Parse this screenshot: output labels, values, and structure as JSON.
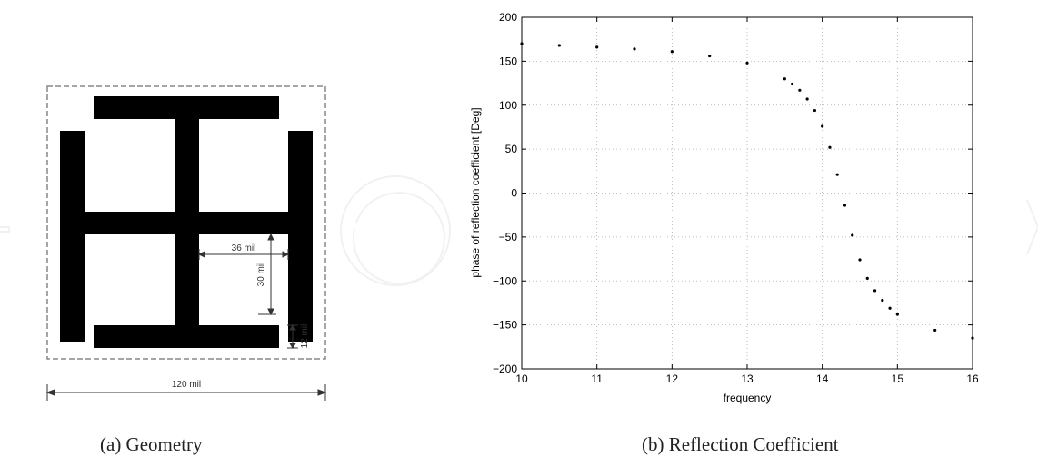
{
  "captions": {
    "left": "(a) Geometry",
    "right": "(b) Reflection Coefficient"
  },
  "geometry": {
    "dim_width": "36 mil",
    "dim_height": "30 mil",
    "dim_strip": "12 mil",
    "dim_total": "120 mil"
  },
  "chart_data": {
    "type": "scatter",
    "xlabel": "frequency",
    "ylabel": "phase of reflection coefficient [Deg]",
    "xlim": [
      10,
      16
    ],
    "ylim": [
      -200,
      200
    ],
    "xticks": [
      10,
      11,
      12,
      13,
      14,
      15,
      16
    ],
    "yticks": [
      200,
      150,
      100,
      50,
      0,
      -50,
      -100,
      -150,
      -200
    ],
    "grid": true,
    "series": [
      {
        "x": [
          10,
          10.5,
          11,
          11.5,
          12,
          12.5,
          13,
          13.5,
          13.6,
          13.7,
          13.8,
          13.9,
          14,
          14.1,
          14.2,
          14.3,
          14.4,
          14.5,
          14.6,
          14.7,
          14.8,
          14.9,
          15,
          15.5,
          16
        ],
        "y": [
          170,
          168,
          166,
          164,
          161,
          156,
          148,
          130,
          124,
          117,
          107,
          94,
          76,
          52,
          21,
          -14,
          -48,
          -76,
          -97,
          -111,
          -122,
          -131,
          -138,
          -156,
          -165
        ]
      }
    ]
  }
}
